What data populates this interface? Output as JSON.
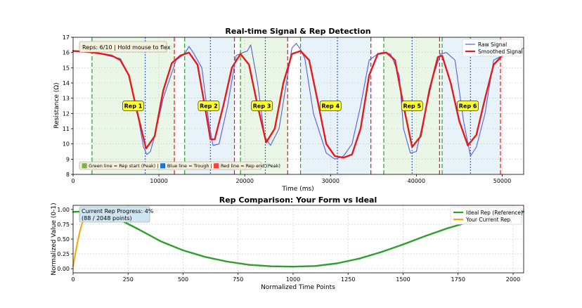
{
  "chart_data": [
    {
      "type": "line",
      "title": "Real-time Signal & Rep Detection",
      "xlabel": "Time (ms)",
      "ylabel": "Resistance (Ω)",
      "xlim": [
        0,
        52500
      ],
      "ylim": [
        8,
        17
      ],
      "xticks": [
        0,
        10000,
        20000,
        30000,
        40000,
        50000
      ],
      "yticks": [
        8,
        9,
        10,
        11,
        12,
        13,
        14,
        15,
        16,
        17
      ],
      "grid": true,
      "legend_position": "top-right",
      "series": [
        {
          "name": "Raw Signal",
          "color": "#5a5ae6",
          "x": [
            0,
            1000,
            2500,
            4000,
            5500,
            6500,
            7500,
            8200,
            8600,
            9000,
            9500,
            10500,
            12000,
            13000,
            13500,
            14000,
            15000,
            15800,
            16300,
            17000,
            18000,
            19000,
            19800,
            20300,
            20700,
            21500,
            22300,
            23000,
            24000,
            25000,
            25500,
            26000,
            26500,
            27000,
            28000,
            29500,
            30500,
            31500,
            32500,
            33500,
            34500,
            35500,
            36000,
            37000,
            38000,
            38500,
            39300,
            40000,
            41000,
            42000,
            42800,
            43500,
            44500,
            45500,
            46300,
            47000,
            48000,
            49000,
            50000,
            51500,
            52500
          ],
          "y": [
            16.1,
            16.1,
            16.0,
            15.8,
            15.6,
            14.5,
            12.0,
            9.8,
            9.3,
            9.5,
            10.5,
            13.0,
            15.5,
            15.9,
            16.4,
            16.0,
            15.0,
            11.5,
            9.9,
            10.0,
            12.5,
            15.8,
            16.0,
            16.1,
            16.5,
            14.0,
            10.5,
            9.9,
            11.0,
            14.5,
            16.3,
            16.6,
            16.2,
            15.6,
            12.0,
            9.4,
            9.0,
            9.2,
            10.0,
            12.5,
            15.5,
            15.9,
            16.0,
            15.9,
            14.5,
            11.0,
            9.4,
            9.5,
            12.0,
            14.5,
            15.9,
            16.0,
            15.5,
            11.5,
            9.2,
            9.8,
            12.0,
            15.5,
            15.8,
            16.0,
            16.3
          ]
        },
        {
          "name": "Smoothed Signal",
          "color": "#e41a1c",
          "x": [
            0,
            1500,
            3000,
            4500,
            5500,
            6500,
            7500,
            8500,
            9500,
            10500,
            11500,
            12500,
            13500,
            14500,
            15500,
            16000,
            16500,
            17500,
            18500,
            19500,
            20500,
            21500,
            22500,
            23500,
            24500,
            25500,
            26500,
            27500,
            28500,
            29500,
            30500,
            31500,
            32500,
            33500,
            34500,
            35500,
            36500,
            37500,
            38500,
            39500,
            40500,
            41500,
            42500,
            43000,
            44000,
            45000,
            46000,
            47000,
            48000,
            49000,
            50000
          ],
          "y": [
            16.1,
            16.05,
            15.95,
            15.8,
            15.5,
            14.5,
            12.0,
            9.7,
            10.5,
            13.5,
            15.3,
            15.8,
            16.0,
            15.2,
            12.0,
            10.3,
            10.3,
            12.5,
            15.0,
            15.9,
            15.2,
            12.5,
            10.1,
            11.0,
            14.0,
            15.9,
            16.1,
            15.5,
            12.8,
            10.0,
            9.2,
            9.1,
            9.3,
            11.0,
            14.5,
            15.9,
            16.0,
            15.5,
            12.5,
            9.8,
            10.5,
            13.5,
            15.7,
            15.8,
            14.0,
            11.5,
            9.9,
            10.6,
            13.0,
            15.2,
            15.8
          ]
        }
      ],
      "vertical_lines": {
        "start": {
          "color": "#2ca02c",
          "x": [
            2200,
            13000,
            19500,
            26500,
            36200,
            43000
          ]
        },
        "trough": {
          "color": "#3a5fd6",
          "x": [
            8400,
            16000,
            22400,
            30800,
            39500,
            46300
          ]
        },
        "end": {
          "color": "#e41a1c",
          "x": [
            11800,
            18800,
            25000,
            34700,
            42700,
            49800
          ]
        }
      },
      "annotations": [
        {
          "label": "Rep 1",
          "x": 7000,
          "y": 12.5
        },
        {
          "label": "Rep 2",
          "x": 15800,
          "y": 12.5
        },
        {
          "label": "Rep 3",
          "x": 22000,
          "y": 12.5
        },
        {
          "label": "Rep 4",
          "x": 30000,
          "y": 12.5
        },
        {
          "label": "Rep 5",
          "x": 39500,
          "y": 12.5
        },
        {
          "label": "Rep 6",
          "x": 46000,
          "y": 12.5
        }
      ],
      "status_text": "Reps: 6/10 | Hold mouse to flex",
      "footnote": "🟩 Green line = Rep start (Peak) | 🟦 Blue line = Trough | 🟥 Red line = Rep end (Peak)"
    },
    {
      "type": "line",
      "title": "Rep Comparison: Your Form vs Ideal",
      "xlabel": "Normalized Time Points",
      "ylabel": "Normalized Value (0-1)",
      "xlim": [
        0,
        2048
      ],
      "ylim": [
        -0.07,
        1.07
      ],
      "xticks": [
        0,
        250,
        500,
        750,
        1000,
        1250,
        1500,
        1750,
        2000
      ],
      "yticks": [
        0.0,
        0.25,
        0.5,
        0.75,
        1.0
      ],
      "grid": true,
      "legend_position": "top-right",
      "series": [
        {
          "name": "Ideal Rep (Reference)",
          "color": "#2ca02c",
          "x": [
            0,
            50,
            100,
            150,
            200,
            300,
            400,
            500,
            600,
            700,
            800,
            900,
            1000,
            1100,
            1200,
            1300,
            1400,
            1500,
            1600,
            1700,
            1800,
            1900,
            2000,
            2048
          ],
          "y": [
            0.96,
            0.965,
            0.95,
            0.92,
            0.85,
            0.66,
            0.46,
            0.31,
            0.2,
            0.12,
            0.065,
            0.04,
            0.035,
            0.045,
            0.09,
            0.17,
            0.28,
            0.41,
            0.55,
            0.68,
            0.79,
            0.88,
            0.94,
            0.965
          ]
        },
        {
          "name": "Your Current Rep",
          "color": "#ffa500",
          "x": [
            0,
            10,
            20,
            30,
            40,
            50,
            60,
            70,
            80,
            88
          ],
          "y": [
            0.04,
            0.25,
            0.45,
            0.62,
            0.75,
            0.84,
            0.9,
            0.94,
            0.96,
            0.97
          ]
        }
      ],
      "info_box": {
        "line1": "Current Rep Progress: 4%",
        "line2": "(88 / 2048 points)"
      }
    }
  ]
}
